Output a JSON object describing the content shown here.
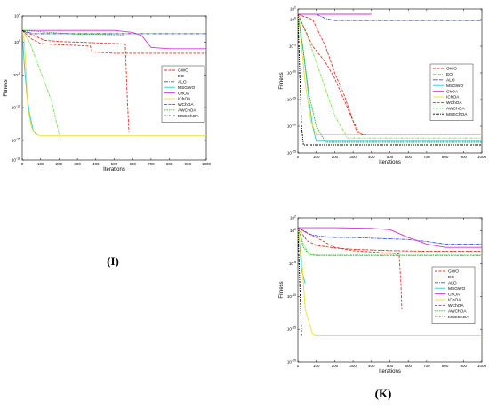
{
  "chart_data": [
    {
      "panel_label": "(I)",
      "type": "line",
      "xlabel": "Iterations",
      "ylabel": "Fitness",
      "log_scale_y": true,
      "xlim": [
        0,
        1000
      ],
      "ylim_exp": [
        -18,
        4
      ],
      "x_ticks": [
        0,
        100,
        200,
        300,
        400,
        500,
        600,
        700,
        800,
        900,
        1000
      ],
      "y_tick_exps": [
        -18,
        -15,
        -10,
        -5,
        0,
        4
      ],
      "legend_position": "center-right",
      "series": [
        {
          "name": "GWO",
          "color": "#e8312a",
          "dash": "3,1.5",
          "x": [
            0,
            50,
            120,
            200,
            300,
            400,
            500,
            560,
            570,
            580
          ],
          "y": [
            1.7,
            1.2,
            0.3,
            0.1,
            0.0,
            -0.1,
            -0.2,
            -0.3,
            -8,
            -13.8
          ]
        },
        {
          "name": "EO",
          "color": "#6ee04a",
          "dash": "3,1,1,1",
          "x": [
            0,
            40,
            80,
            120,
            160,
            200,
            210
          ],
          "y": [
            1.8,
            0,
            -3,
            -6,
            -9,
            -14,
            -15
          ]
        },
        {
          "name": "ALO",
          "color": "#3552e0",
          "dash": "4,1,1,1",
          "x": [
            0,
            20,
            60,
            1000
          ],
          "y": [
            1.8,
            1.6,
            1.3,
            1.3
          ]
        },
        {
          "name": "MSGWO",
          "color": "#2ec8c8",
          "dash": "",
          "x": [
            0,
            10,
            25,
            40,
            60,
            80
          ],
          "y": [
            1.8,
            -3,
            -8,
            -11,
            -13.5,
            -14.2
          ]
        },
        {
          "name": "ChOA",
          "color": "#d136d1",
          "dash": "",
          "x": [
            0,
            100,
            300,
            500,
            600,
            650,
            700,
            800,
            1000
          ],
          "y": [
            1.8,
            1.8,
            1.8,
            1.8,
            1.5,
            1.0,
            -0.8,
            -1.0,
            -1.0
          ]
        },
        {
          "name": "IChOA",
          "color": "#e8e030",
          "dash": "",
          "x": [
            0,
            10,
            20,
            30,
            50,
            70,
            100,
            1000
          ],
          "y": [
            1.8,
            0.5,
            -4,
            -10,
            -13,
            -14,
            -14.3,
            -14.3
          ]
        },
        {
          "name": "WChOA",
          "color": "#d13a2a",
          "dash": "3,1.5",
          "x": [
            0,
            50,
            100,
            200,
            300,
            360,
            370,
            380,
            450,
            500,
            600,
            1000
          ],
          "y": [
            1.8,
            0.5,
            -0.2,
            -0.4,
            -0.5,
            -0.6,
            -0.6,
            -1.5,
            -1.6,
            -1.7,
            -1.7,
            -1.7
          ]
        },
        {
          "name": "AWChOA",
          "color": "#2ab82a",
          "dash": "1.5,1",
          "x": [
            0,
            100,
            200,
            300,
            400,
            550
          ],
          "y": [
            1.8,
            1.6,
            1.4,
            1.2,
            1.2,
            1.1
          ]
        },
        {
          "name": "MSEChOA",
          "color": "#000000",
          "dash": "2,1,1,1",
          "x": [
            0,
            10,
            20
          ],
          "y": [
            1.8,
            1.6,
            1.5
          ]
        }
      ]
    },
    {
      "panel_label": "(J)",
      "type": "line",
      "xlabel": "Iterations",
      "ylabel": "Fitness",
      "log_scale_y": true,
      "xlim": [
        0,
        1000
      ],
      "ylim_exp": [
        -25,
        2
      ],
      "x_ticks": [
        0,
        100,
        200,
        300,
        400,
        500,
        600,
        700,
        800,
        900,
        1000
      ],
      "y_tick_exps": [
        -25,
        -20,
        -15,
        -10,
        -5,
        0,
        2
      ],
      "legend_position": "top-right",
      "series": [
        {
          "name": "GWO",
          "color": "#e8312a",
          "dash": "3,1.5",
          "x": [
            0,
            80,
            150,
            200,
            250,
            300,
            320,
            340,
            360,
            380,
            1000
          ],
          "y": [
            1.0,
            0,
            -5,
            -10,
            -14,
            -19,
            -21,
            -21.5,
            -21.6,
            -21.6,
            -21.6
          ]
        },
        {
          "name": "EO",
          "color": "#6ee04a",
          "dash": "3,1,1,1",
          "x": [
            0,
            50,
            100,
            150,
            200,
            250,
            270,
            1000
          ],
          "y": [
            1.0,
            -3,
            -8,
            -13,
            -18,
            -21,
            -22.2,
            -22.2
          ]
        },
        {
          "name": "ALO",
          "color": "#3552e0",
          "dash": "4,1,1,1",
          "x": [
            0,
            100,
            150,
            200,
            1000
          ],
          "y": [
            1.0,
            1.0,
            0.2,
            -0.2,
            -0.2
          ]
        },
        {
          "name": "MSGWO",
          "color": "#2ec8c8",
          "dash": "",
          "x": [
            0,
            30,
            60,
            80,
            100,
            1000
          ],
          "y": [
            1.0,
            -6,
            -15,
            -20,
            -22.8,
            -22.8
          ]
        },
        {
          "name": "ChOA",
          "color": "#d136d1",
          "dash": "",
          "x": [
            0,
            100,
            200,
            300,
            400
          ],
          "y": [
            1.0,
            1.0,
            1.0,
            1.0,
            1.0
          ]
        },
        {
          "name": "IChOA",
          "color": "#e8e030",
          "dash": "",
          "x": [
            0,
            20,
            40,
            70,
            100,
            1000
          ],
          "y": [
            1.0,
            -5,
            -12,
            -19,
            -21.6,
            -21.6
          ]
        },
        {
          "name": "WChOA",
          "color": "#d13a2a",
          "dash": "3,1.5",
          "x": [
            0,
            40,
            80,
            150,
            200,
            250,
            300,
            330,
            350,
            370
          ],
          "y": [
            1.0,
            -2,
            -5,
            -8,
            -11,
            -15,
            -19,
            -21,
            -21.6,
            -21.6
          ]
        },
        {
          "name": "AWChOA",
          "color": "#2ab82a",
          "dash": "1.5,1",
          "x": [
            0,
            30,
            60,
            100,
            150,
            1000
          ],
          "y": [
            1.0,
            -6,
            -14,
            -20,
            -23,
            -23
          ]
        },
        {
          "name": "MSEChOA",
          "color": "#000000",
          "dash": "2,1,1,1",
          "x": [
            0,
            10,
            20,
            30,
            40,
            1000
          ],
          "y": [
            1.0,
            -10,
            -20,
            -23.5,
            -23.5,
            -23.5
          ]
        }
      ]
    },
    {
      "panel_label": "(K)",
      "type": "line",
      "xlabel": "Iterations",
      "ylabel": "Fitness",
      "log_scale_y": true,
      "xlim": [
        0,
        1000
      ],
      "ylim_exp": [
        -20,
        2
      ],
      "x_ticks": [
        0,
        100,
        200,
        300,
        400,
        500,
        600,
        700,
        800,
        900,
        1000
      ],
      "y_tick_exps": [
        -20,
        -15,
        -10,
        -5,
        0,
        2
      ],
      "legend_position": "center-right",
      "series": [
        {
          "name": "GWO",
          "color": "#e8312a",
          "dash": "3,1.5",
          "x": [
            0,
            100,
            200,
            300,
            400,
            500,
            550,
            560,
            565
          ],
          "y": [
            0.5,
            -1,
            -2.5,
            -3,
            -3.2,
            -3.4,
            -3.5,
            -8,
            -12
          ]
        },
        {
          "name": "EO",
          "color": "#6ee04a",
          "dash": "3,1,1,1",
          "x": [
            0,
            30,
            60,
            100,
            1000
          ],
          "y": [
            0.5,
            -2,
            -3.5,
            -3.8,
            -3.8
          ]
        },
        {
          "name": "ALO",
          "color": "#3552e0",
          "dash": "4,1,1,1",
          "x": [
            0,
            60,
            120,
            200,
            300,
            500,
            600,
            700,
            800,
            1000
          ],
          "y": [
            0.5,
            -0.5,
            -0.8,
            -1.0,
            -1.0,
            -1.2,
            -1.3,
            -1.6,
            -2.0,
            -2.0
          ]
        },
        {
          "name": "MSGWO",
          "color": "#2ec8c8",
          "dash": "",
          "x": [
            0,
            10,
            20,
            40
          ],
          "y": [
            0.5,
            -2,
            -6,
            -8
          ]
        },
        {
          "name": "ChOA",
          "color": "#d136d1",
          "dash": "",
          "x": [
            0,
            200,
            400,
            500,
            600,
            700,
            800,
            1000
          ],
          "y": [
            0.5,
            0.5,
            0.4,
            0.2,
            -1,
            -2.0,
            -2.5,
            -2.5
          ]
        },
        {
          "name": "IChOA",
          "color": "#e8e030",
          "dash": "",
          "x": [
            0,
            20,
            40,
            80,
            100,
            1000
          ],
          "y": [
            0.5,
            -4,
            -12,
            -15.8,
            -16,
            -16
          ]
        },
        {
          "name": "WChOA",
          "color": "#d13a2a",
          "dash": "3,1.5",
          "x": [
            0,
            50,
            100,
            200,
            300,
            500,
            700,
            1000
          ],
          "y": [
            0.5,
            -1.5,
            -2.2,
            -2.6,
            -2.8,
            -3.0,
            -3.1,
            -3.1
          ]
        },
        {
          "name": "AWChOA",
          "color": "#2ab82a",
          "dash": "1.5,1",
          "x": [
            0,
            30,
            60,
            100,
            1000
          ],
          "y": [
            0.5,
            -2.5,
            -3.6,
            -3.7,
            -3.7
          ]
        },
        {
          "name": "MSEChOA",
          "color": "#000000",
          "dash": "2,1,1,1",
          "x": [
            0,
            10,
            20
          ],
          "y": [
            0.5,
            -8,
            -16
          ]
        }
      ]
    }
  ]
}
